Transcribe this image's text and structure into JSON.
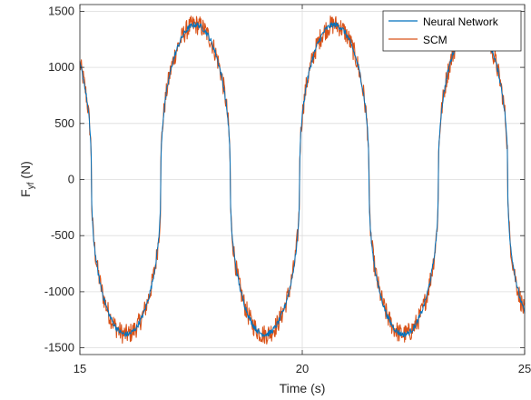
{
  "chart_data": {
    "type": "line",
    "title": "",
    "xlabel": "Time (s)",
    "ylabel_main": "F",
    "ylabel_sub": "yf",
    "ylabel_unit": " (N)",
    "xlim": [
      15,
      25
    ],
    "ylim": [
      -1560,
      1560
    ],
    "xticks": [
      15,
      20,
      25
    ],
    "xtick_labels": [
      "15",
      "20",
      "25"
    ],
    "yticks": [
      -1500,
      -1000,
      -500,
      0,
      500,
      1000,
      1500
    ],
    "ytick_labels": [
      "-1500",
      "-1000",
      "-500",
      "0",
      "500",
      "1000",
      "1500"
    ],
    "grid": true,
    "legend_position": "top-right",
    "waveform": {
      "amplitude": 1380,
      "period_s": 3.12,
      "phase_x_at_peak": 17.6,
      "shape_power": 0.42
    },
    "series": [
      {
        "name": "Neural Network",
        "color": "#0072BD",
        "noise_amplitude": 25,
        "x": [
          15.0,
          15.2,
          15.4,
          15.6,
          15.8,
          16.0,
          16.2,
          16.4,
          16.6,
          16.8,
          17.0,
          17.2,
          17.4,
          17.6,
          17.8,
          18.0,
          18.2,
          18.4,
          18.6,
          18.8,
          19.0,
          19.2,
          19.4,
          19.6,
          19.8,
          20.0,
          20.2,
          20.4,
          20.6,
          20.8,
          21.0,
          21.2,
          21.4,
          21.6,
          21.8,
          22.0,
          22.2,
          22.4,
          22.6,
          22.8,
          23.0,
          23.2,
          23.4,
          23.6,
          23.8,
          24.0,
          24.2,
          24.4,
          24.6,
          24.8,
          25.0
        ],
        "y": [
          1280,
          1000,
          -300,
          -1300,
          -1370,
          -1380,
          -1350,
          -1150,
          -200,
          900,
          1270,
          1340,
          1370,
          1380,
          1360,
          1200,
          300,
          -1000,
          -1320,
          -1370,
          -1380,
          -1360,
          -1250,
          -500,
          700,
          1200,
          1330,
          1370,
          1380,
          1370,
          1280,
          600,
          -800,
          -1300,
          -1370,
          -1380,
          -1370,
          -1310,
          -1000,
          200,
          1050,
          1300,
          1360,
          1380,
          1370,
          1320,
          1000,
          -200,
          -1200,
          -1350,
          -1380
        ]
      },
      {
        "name": "SCM",
        "color": "#D95319",
        "noise_amplitude": 90
      }
    ]
  }
}
